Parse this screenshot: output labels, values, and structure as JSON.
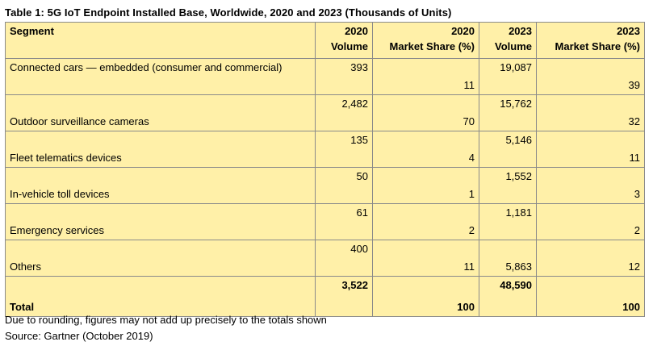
{
  "title": "Table 1: 5G IoT Endpoint Installed Base, Worldwide, 2020 and 2023 (Thousands of Units)",
  "header": {
    "segment": "Segment",
    "col1": {
      "line1": "2020",
      "line2": "Volume"
    },
    "col2": {
      "line1": "2020",
      "line2": "Market Share (%)"
    },
    "col3": {
      "line1": "2023",
      "line2": "Volume"
    },
    "col4": {
      "line1": "2023",
      "line2": "Market Share (%)"
    }
  },
  "rows": [
    {
      "segment": "Connected cars — embedded (consumer and commercial)",
      "vol2020": "393",
      "share2020": "11",
      "vol2023": "19,087",
      "share2023": "39"
    },
    {
      "segment": "Outdoor surveillance cameras",
      "vol2020": "2,482",
      "share2020": "70",
      "vol2023": "15,762",
      "share2023": "32"
    },
    {
      "segment": "Fleet telematics devices",
      "vol2020": "135",
      "share2020": "4",
      "vol2023": "5,146",
      "share2023": "11"
    },
    {
      "segment": "In-vehicle toll devices",
      "vol2020": "50",
      "share2020": "1",
      "vol2023": "1,552",
      "share2023": "3"
    },
    {
      "segment": "Emergency services",
      "vol2020": "61",
      "share2020": "2",
      "vol2023": "1,181",
      "share2023": "2"
    },
    {
      "segment": "Others",
      "vol2020": "400",
      "share2020": "11",
      "vol2023": "5,863",
      "share2023": "12"
    }
  ],
  "total": {
    "segment": "Total",
    "vol2020": "3,522",
    "share2020": "100",
    "vol2023": "48,590",
    "share2023": "100"
  },
  "notes": {
    "rounding": "Due to rounding, figures may not add up precisely to the totals shown",
    "source": "Source: Gartner (October 2019)"
  },
  "colors": {
    "table_background": "#fff0a8",
    "border": "#8a8a8a"
  }
}
